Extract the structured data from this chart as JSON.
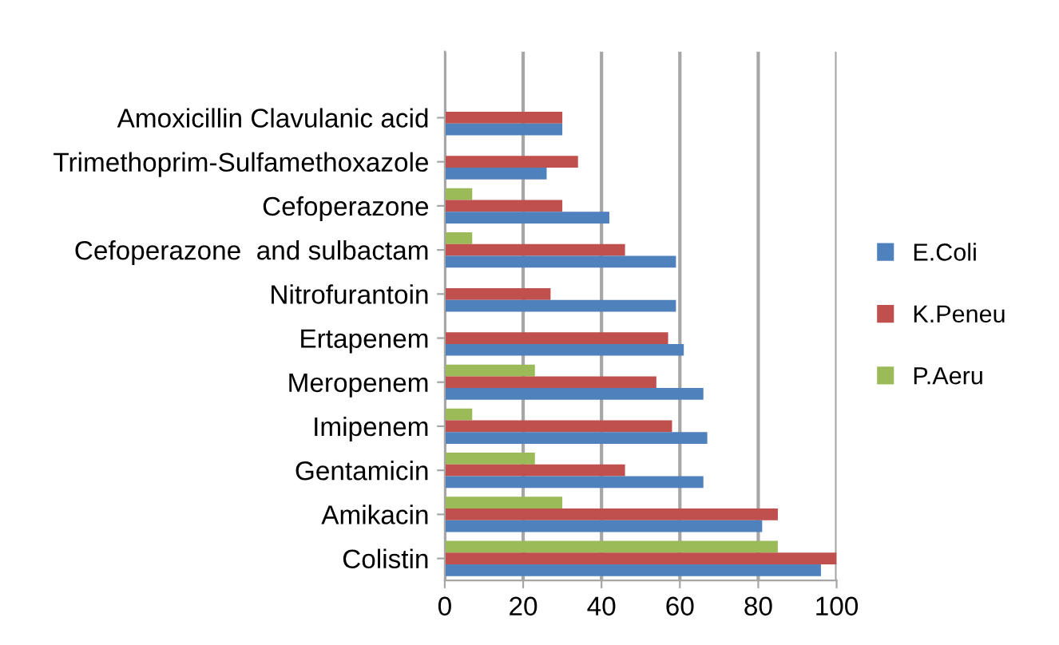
{
  "chart_data": {
    "type": "bar",
    "orientation": "horizontal",
    "categories": [
      "Amoxicillin Clavulanic acid",
      "Trimethoprim-Sulfamethoxazole",
      "Cefoperazone",
      "Cefoperazone  and sulbactam",
      "Nitrofurantoin",
      "Ertapenem",
      "Meropenem",
      "Imipenem",
      "Gentamicin",
      "Amikacin",
      "Colistin"
    ],
    "series": [
      {
        "name": "P.Aeru",
        "color": "#9bbb59",
        "values": [
          null,
          null,
          7,
          7,
          null,
          null,
          23,
          7,
          23,
          30,
          85
        ]
      },
      {
        "name": "K.Peneu",
        "color": "#c0504d",
        "values": [
          30,
          34,
          30,
          46,
          27,
          57,
          54,
          58,
          46,
          85,
          100
        ]
      },
      {
        "name": "E.Coli",
        "color": "#4f81bd",
        "values": [
          30,
          26,
          42,
          59,
          59,
          61,
          66,
          67,
          66,
          81,
          96
        ]
      }
    ],
    "xlim": [
      0,
      100
    ],
    "xticks": [
      0,
      20,
      40,
      60,
      80,
      100
    ],
    "grid": "x",
    "legend": "right"
  }
}
